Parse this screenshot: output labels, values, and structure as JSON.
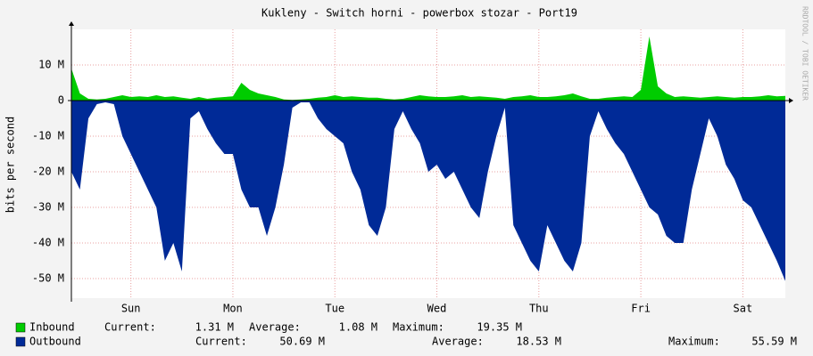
{
  "chart_data": {
    "type": "area",
    "title": "Kukleny - Switch horni - powerbox stozar - Port19",
    "y_label": "bits per second",
    "watermark": "RRDTOOL / TOBI OETIKER",
    "xlim": [
      0,
      168
    ],
    "xticks": [
      {
        "value": 14,
        "label": "Sun"
      },
      {
        "value": 38,
        "label": "Mon"
      },
      {
        "value": 62,
        "label": "Tue"
      },
      {
        "value": 86,
        "label": "Wed"
      },
      {
        "value": 110,
        "label": "Thu"
      },
      {
        "value": 134,
        "label": "Fri"
      },
      {
        "value": 158,
        "label": "Sat"
      }
    ],
    "ylim": [
      -55500000,
      20000000
    ],
    "yticks": [
      {
        "value": 10000000,
        "label": "10 M"
      },
      0,
      {
        "value": -10000000,
        "label": "-10 M"
      },
      {
        "value": -20000000,
        "label": "-20 M"
      },
      {
        "value": -30000000,
        "label": "-30 M"
      },
      {
        "value": -40000000,
        "label": "-40 M"
      },
      {
        "value": -50000000,
        "label": "-50 M"
      }
    ],
    "grid": true,
    "x": [
      0,
      2,
      4,
      6,
      8,
      10,
      12,
      14,
      16,
      18,
      20,
      22,
      24,
      26,
      28,
      30,
      32,
      34,
      36,
      38,
      40,
      42,
      44,
      46,
      48,
      50,
      52,
      54,
      56,
      58,
      60,
      62,
      64,
      66,
      68,
      70,
      72,
      74,
      76,
      78,
      80,
      82,
      84,
      86,
      88,
      90,
      92,
      94,
      96,
      98,
      100,
      102,
      104,
      106,
      108,
      110,
      112,
      114,
      116,
      118,
      120,
      122,
      124,
      126,
      128,
      130,
      132,
      134,
      136,
      138,
      140,
      142,
      144,
      146,
      148,
      150,
      152,
      154,
      156,
      158,
      160,
      162,
      164,
      166,
      168
    ],
    "series": [
      {
        "name": "Inbound",
        "color": "#00cc00",
        "values": [
          9000000,
          2000000,
          500000,
          300000,
          500000,
          1000000,
          1500000,
          1000000,
          1200000,
          1000000,
          1500000,
          1000000,
          1200000,
          800000,
          500000,
          1000000,
          500000,
          800000,
          1000000,
          1200000,
          5000000,
          3000000,
          2000000,
          1500000,
          1000000,
          300000,
          200000,
          300000,
          500000,
          800000,
          1000000,
          1500000,
          1000000,
          1200000,
          1000000,
          800000,
          800000,
          500000,
          300000,
          500000,
          1000000,
          1500000,
          1200000,
          1000000,
          1000000,
          1200000,
          1500000,
          1000000,
          1200000,
          1000000,
          800000,
          500000,
          1000000,
          1200000,
          1500000,
          1000000,
          1000000,
          1200000,
          1500000,
          2000000,
          1200000,
          500000,
          500000,
          800000,
          1000000,
          1200000,
          1000000,
          3000000,
          18000000,
          4000000,
          2000000,
          1000000,
          1200000,
          1000000,
          800000,
          1000000,
          1200000,
          1000000,
          800000,
          1000000,
          1000000,
          1200000,
          1500000,
          1200000,
          1310000
        ],
        "stats": [
          {
            "label": "Current:",
            "value": "1.31 M"
          },
          {
            "label": "Average:",
            "value": "1.08 M"
          },
          {
            "label": "Maximum:",
            "value": "19.35 M"
          }
        ]
      },
      {
        "name": "Outbound",
        "color": "#002a97",
        "values": [
          -20000000,
          -25000000,
          -5000000,
          -1000000,
          -500000,
          -1000000,
          -10000000,
          -15000000,
          -20000000,
          -25000000,
          -30000000,
          -45000000,
          -40000000,
          -48000000,
          -5000000,
          -3000000,
          -8000000,
          -12000000,
          -15000000,
          -15000000,
          -25000000,
          -30000000,
          -30000000,
          -38000000,
          -30000000,
          -18000000,
          -2000000,
          -500000,
          -500000,
          -5000000,
          -8000000,
          -10000000,
          -12000000,
          -20000000,
          -25000000,
          -35000000,
          -38000000,
          -30000000,
          -8000000,
          -3000000,
          -8000000,
          -12000000,
          -20000000,
          -18000000,
          -22000000,
          -20000000,
          -25000000,
          -30000000,
          -33000000,
          -20000000,
          -10000000,
          -2000000,
          -35000000,
          -40000000,
          -45000000,
          -48000000,
          -35000000,
          -40000000,
          -45000000,
          -48000000,
          -40000000,
          -10000000,
          -3000000,
          -8000000,
          -12000000,
          -15000000,
          -20000000,
          -25000000,
          -30000000,
          -32000000,
          -38000000,
          -40000000,
          -40000000,
          -25000000,
          -15000000,
          -5000000,
          -10000000,
          -18000000,
          -22000000,
          -28000000,
          -30000000,
          -35000000,
          -40000000,
          -45000000,
          -50690000
        ],
        "stats": [
          {
            "label": "Current:",
            "value": "50.69 M"
          },
          {
            "label": "Average:",
            "value": "18.53 M"
          },
          {
            "label": "Maximum:",
            "value": "55.59 M"
          }
        ]
      }
    ]
  }
}
